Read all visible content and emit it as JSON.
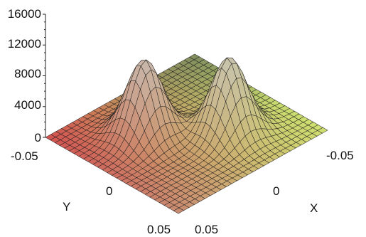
{
  "chart_data": {
    "type": "surface",
    "title": "",
    "xlabel": "X",
    "ylabel": "Y",
    "zlabel": "",
    "xlim": [
      -0.05,
      0.05
    ],
    "ylim": [
      -0.05,
      0.05
    ],
    "zlim": [
      0,
      16000
    ],
    "z_ticks": [
      "0",
      "4000",
      "8000",
      "12000",
      "16000"
    ],
    "x_ticks": [
      "-0.05",
      "0",
      "0.05"
    ],
    "y_ticks": [
      "-0.05",
      "0",
      "0.05"
    ],
    "grid_resolution": 28,
    "peaks": [
      {
        "x": -0.015,
        "y": -0.015,
        "height": 9800
      },
      {
        "x": 0.015,
        "y": 0.015,
        "height": 9800
      }
    ],
    "peak_width": 0.0095,
    "colormap": [
      "#d4504f",
      "#c98c72",
      "#b8d66a",
      "#d0e070",
      "#555555",
      "#c8c8c8"
    ]
  }
}
